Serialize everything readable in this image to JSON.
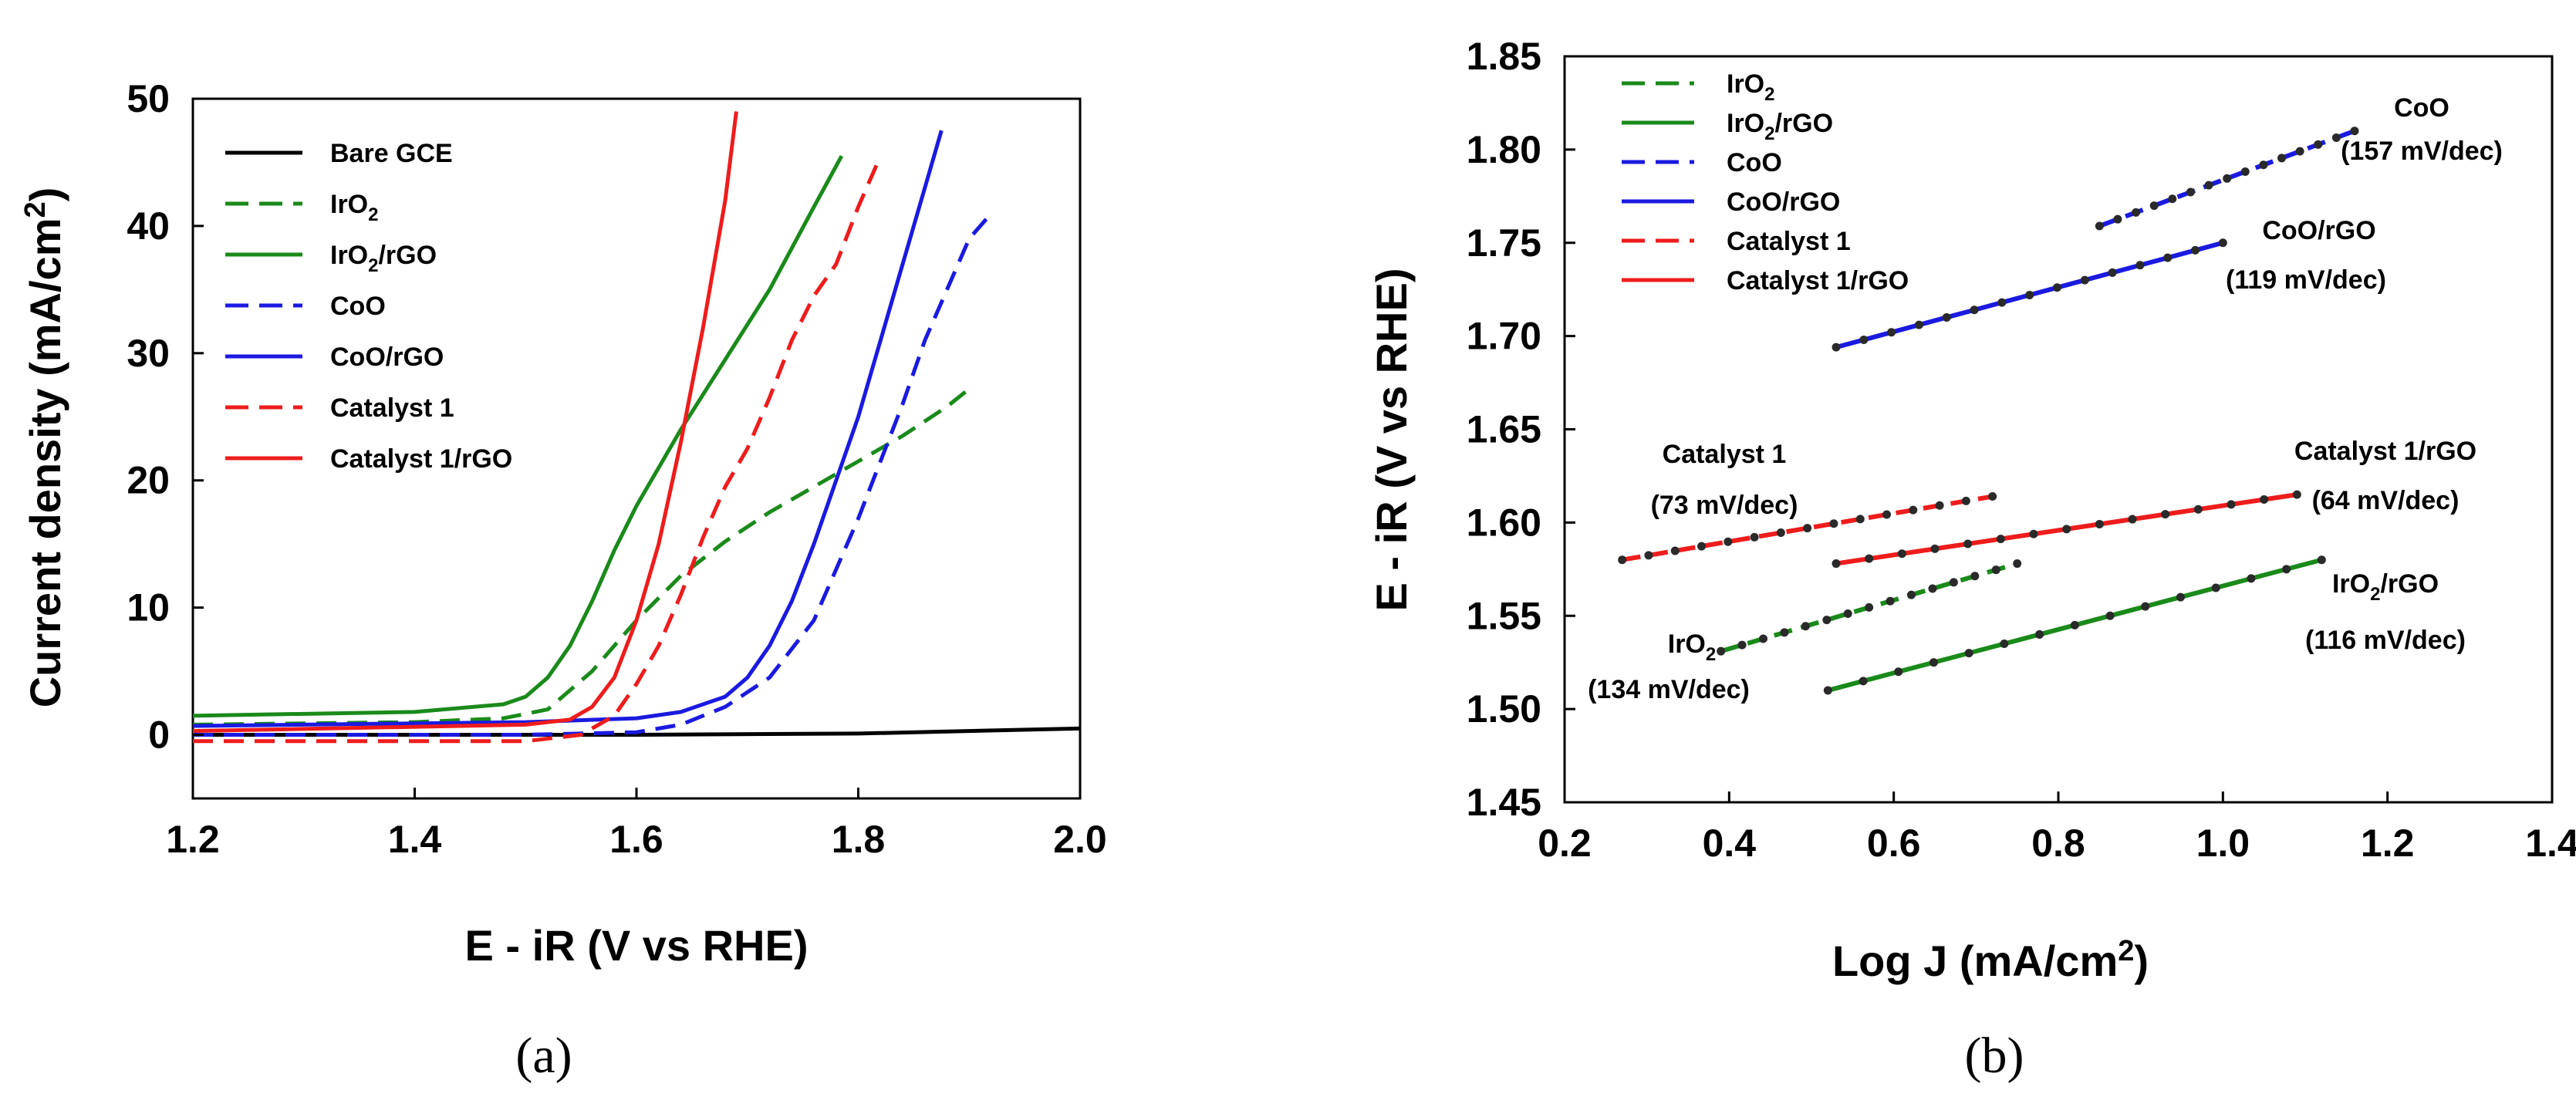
{
  "chart_data": [
    {
      "type": "line",
      "panel": "a",
      "caption": "(a)",
      "xlabel": "E - iR (V vs RHE)",
      "ylabel": "Current density (mA/cm2)",
      "xlim": [
        1.2,
        2.0
      ],
      "ylim": [
        -5,
        50
      ],
      "xticks": [
        "1.2",
        "1.4",
        "1.6",
        "1.8",
        "2.0"
      ],
      "yticks": [
        "0",
        "10",
        "20",
        "30",
        "40",
        "50"
      ],
      "legend_position": "top-left",
      "series": [
        {
          "name": "Bare GCE",
          "legend_label": "Bare GCE",
          "color": "#000000",
          "dash": "solid",
          "x": [
            1.2,
            1.4,
            1.6,
            1.8,
            2.0
          ],
          "y": [
            0.0,
            0.0,
            0.0,
            0.1,
            0.5
          ]
        },
        {
          "name": "IrO2",
          "legend_label": "IrO",
          "legend_sub": "2",
          "legend_suffix": "",
          "color": "#1a8a1a",
          "dash": "dashed",
          "x": [
            1.2,
            1.4,
            1.48,
            1.52,
            1.56,
            1.6,
            1.64,
            1.68,
            1.72,
            1.76,
            1.8,
            1.84,
            1.88,
            1.9
          ],
          "y": [
            0.8,
            1.0,
            1.3,
            2.0,
            5.0,
            9.0,
            12.5,
            15.2,
            17.5,
            19.5,
            21.5,
            23.5,
            25.8,
            27.2
          ]
        },
        {
          "name": "IrO2/rGO",
          "legend_label": "IrO",
          "legend_sub": "2",
          "legend_suffix": "/rGO",
          "color": "#1a8a1a",
          "dash": "solid",
          "x": [
            1.2,
            1.4,
            1.48,
            1.5,
            1.52,
            1.54,
            1.56,
            1.58,
            1.6,
            1.62,
            1.64,
            1.68,
            1.72,
            1.76,
            1.785
          ],
          "y": [
            1.5,
            1.8,
            2.4,
            3.0,
            4.5,
            7.0,
            10.5,
            14.5,
            18.0,
            21.0,
            24.0,
            29.5,
            35.0,
            41.5,
            45.5
          ]
        },
        {
          "name": "CoO",
          "legend_label": "CoO",
          "color": "#1a1ae0",
          "dash": "dashed",
          "x": [
            1.2,
            1.5,
            1.6,
            1.64,
            1.68,
            1.72,
            1.76,
            1.8,
            1.84,
            1.86,
            1.88,
            1.9,
            1.92
          ],
          "y": [
            0.0,
            0.0,
            0.2,
            0.8,
            2.2,
            4.5,
            9.0,
            17.0,
            26.0,
            31.0,
            35.0,
            39.0,
            41.0
          ]
        },
        {
          "name": "CoO/rGO",
          "legend_label": "CoO/rGO",
          "color": "#1a1ae0",
          "dash": "solid",
          "x": [
            1.2,
            1.5,
            1.6,
            1.64,
            1.68,
            1.7,
            1.72,
            1.74,
            1.76,
            1.78,
            1.8,
            1.82,
            1.84,
            1.86,
            1.875
          ],
          "y": [
            0.7,
            1.0,
            1.3,
            1.8,
            3.0,
            4.5,
            7.0,
            10.5,
            15.0,
            20.0,
            25.0,
            31.0,
            37.0,
            43.0,
            47.5
          ]
        },
        {
          "name": "Catalyst 1",
          "legend_label": "Catalyst 1",
          "color": "#ee1c1c",
          "dash": "dashed",
          "x": [
            1.2,
            1.5,
            1.55,
            1.58,
            1.6,
            1.62,
            1.64,
            1.66,
            1.68,
            1.7,
            1.72,
            1.74,
            1.76,
            1.78,
            1.8,
            1.82
          ],
          "y": [
            -0.5,
            -0.5,
            0.0,
            1.5,
            4.0,
            7.0,
            11.0,
            15.5,
            19.5,
            22.5,
            26.5,
            31.0,
            34.5,
            37.0,
            41.5,
            45.5
          ]
        },
        {
          "name": "Catalyst 1/rGO",
          "legend_label": "Catalyst 1/rGO",
          "color": "#ee1c1c",
          "dash": "solid",
          "x": [
            1.2,
            1.5,
            1.54,
            1.56,
            1.58,
            1.6,
            1.62,
            1.64,
            1.66,
            1.68,
            1.69
          ],
          "y": [
            0.3,
            0.8,
            1.2,
            2.2,
            4.5,
            9.0,
            15.0,
            23.0,
            32.0,
            42.0,
            49.0
          ]
        }
      ]
    },
    {
      "type": "line",
      "panel": "b",
      "caption": "(b)",
      "xlabel": "Log J (mA/cm",
      "xlabel_sup": "2",
      "xlabel_suffix": ")",
      "ylabel": "E - iR (V vs RHE)",
      "xlim": [
        0.2,
        1.4
      ],
      "ylim": [
        1.45,
        1.85
      ],
      "xticks": [
        "0.2",
        "0.4",
        "0.6",
        "0.8",
        "1.0",
        "1.2",
        "1.4"
      ],
      "yticks": [
        "1.45",
        "1.50",
        "1.55",
        "1.60",
        "1.65",
        "1.70",
        "1.75",
        "1.80",
        "1.85"
      ],
      "legend_position": "top-left",
      "series": [
        {
          "name": "IrO2",
          "legend_label": "IrO",
          "legend_sub": "2",
          "legend_suffix": "",
          "color": "#1a8a1a",
          "dash": "dashed",
          "x": [
            0.39,
            0.75
          ],
          "y": [
            1.531,
            1.578
          ]
        },
        {
          "name": "IrO2/rGO",
          "legend_label": "IrO",
          "legend_sub": "2",
          "legend_suffix": "/rGO",
          "color": "#1a8a1a",
          "dash": "solid",
          "x": [
            0.52,
            1.12
          ],
          "y": [
            1.51,
            1.58
          ]
        },
        {
          "name": "CoO",
          "legend_label": "CoO",
          "color": "#1a1ae0",
          "dash": "dashed",
          "x": [
            0.85,
            1.16
          ],
          "y": [
            1.759,
            1.81
          ]
        },
        {
          "name": "CoO/rGO",
          "legend_label": "CoO/rGO",
          "color": "#1a1ae0",
          "dash": "solid",
          "x": [
            0.53,
            1.0
          ],
          "y": [
            1.694,
            1.75
          ]
        },
        {
          "name": "Catalyst 1",
          "legend_label": "Catalyst 1",
          "color": "#ee1c1c",
          "dash": "dashed",
          "x": [
            0.27,
            0.72
          ],
          "y": [
            1.58,
            1.614
          ]
        },
        {
          "name": "Catalyst 1/rGO",
          "legend_label": "Catalyst 1/rGO",
          "color": "#ee1c1c",
          "dash": "solid",
          "x": [
            0.53,
            1.09
          ],
          "y": [
            1.578,
            1.615
          ]
        }
      ],
      "annotations": [
        {
          "name": "CoO",
          "text": "CoO",
          "slope": "(157 mV/dec)"
        },
        {
          "name": "CoO/rGO",
          "text": "CoO/rGO",
          "slope": "(119 mV/dec)"
        },
        {
          "name": "Catalyst 1",
          "text": "Catalyst 1",
          "slope": "(73 mV/dec)"
        },
        {
          "name": "Catalyst 1/rGO",
          "text": "Catalyst 1/rGO",
          "slope": "(64 mV/dec)"
        },
        {
          "name": "IrO2",
          "text": "IrO",
          "sub": "2",
          "suffix": "",
          "slope": "(134 mV/dec)"
        },
        {
          "name": "IrO2/rGO",
          "text": "IrO",
          "sub": "2",
          "suffix": "/rGO",
          "slope": "(116 mV/dec)"
        }
      ]
    }
  ],
  "panel_a_ylabel": {
    "main": "Current density (mA/cm",
    "sup": "2",
    "suffix": ")"
  }
}
